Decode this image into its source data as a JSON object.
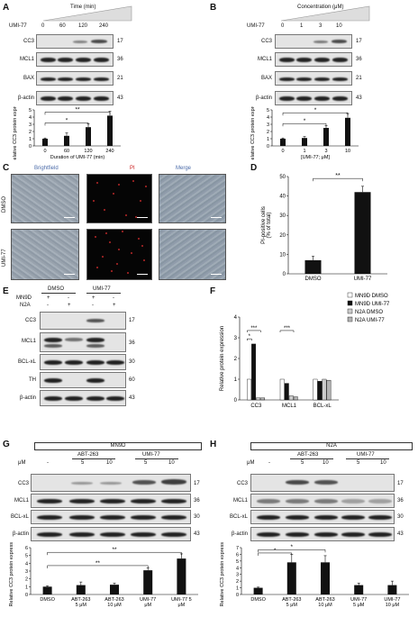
{
  "panels": {
    "A": "A",
    "B": "B",
    "C": "C",
    "D": "D",
    "E": "E",
    "F": "F",
    "G": "G",
    "H": "H"
  },
  "A": {
    "header": "Time (min)",
    "treatment": "UMI-77",
    "lanes": [
      "0",
      "60",
      "120",
      "240"
    ],
    "rows": [
      {
        "name": "CC3",
        "mw": "17"
      },
      {
        "name": "MCL1",
        "mw": "36"
      },
      {
        "name": "BAX",
        "mw": "21"
      },
      {
        "name": "β-actin",
        "mw": "43"
      }
    ],
    "chart": {
      "ylabel": "Relative CC3 protein expression",
      "xlabel": "Duration of UMI-77 (min)",
      "yticks": [
        "0",
        "1",
        "2",
        "3",
        "4",
        "5"
      ],
      "sig": [
        "*",
        "**"
      ]
    }
  },
  "B": {
    "header": "Concentration (μM)",
    "treatment": "UMI-77",
    "lanes": [
      "0",
      "1",
      "3",
      "10"
    ],
    "rows": [
      {
        "name": "CC3",
        "mw": "17"
      },
      {
        "name": "MCL1",
        "mw": "36"
      },
      {
        "name": "BAX",
        "mw": "21"
      },
      {
        "name": "β-actin",
        "mw": "43"
      }
    ],
    "chart": {
      "ylabel": "Relative CC3 protein expression",
      "xlabel": "[UMI-77; μM]",
      "yticks": [
        "0",
        "1",
        "2",
        "3",
        "4",
        "5"
      ],
      "sig": [
        "*",
        "*"
      ]
    }
  },
  "C": {
    "cols": [
      "Brightfield",
      "PI",
      "Merge"
    ],
    "rows": [
      "DMSO",
      "UMI-77"
    ]
  },
  "D": {
    "ylabel": "PI-positive cells",
    "ylabel2": "(% of total)",
    "yticks": [
      "0",
      "10",
      "20",
      "30",
      "40",
      "50"
    ],
    "sig": "**"
  },
  "E": {
    "groups": [
      "DMSO",
      "UMI-77"
    ],
    "lineA": "MN9D",
    "lineB": "N2A",
    "plus": "+",
    "minus": "-",
    "rows": [
      {
        "name": "CC3",
        "mw": "17"
      },
      {
        "name": "MCL1",
        "mw": "36"
      },
      {
        "name": "BCL-xL",
        "mw": "30"
      },
      {
        "name": "TH",
        "mw": "60"
      },
      {
        "name": "β-actin",
        "mw": "43"
      }
    ]
  },
  "F": {
    "ylabel": "Relative protein expression",
    "yticks": [
      "0",
      "1",
      "2",
      "3",
      "4"
    ],
    "legend": [
      "MN9D DMSO",
      "MN9D UMI-77",
      "N2A DMSO",
      "N2A UMI-77"
    ],
    "sig": [
      "*",
      "***",
      "***"
    ]
  },
  "G": {
    "cell": "MN9D",
    "unit": "μM",
    "drugs": [
      "ABT-263",
      "UMI-77"
    ],
    "doses": [
      "-",
      "5",
      "10",
      "5",
      "10"
    ],
    "rows": [
      {
        "name": "CC3",
        "mw": "17"
      },
      {
        "name": "MCL1",
        "mw": "36"
      },
      {
        "name": "BCL-xL",
        "mw": "30"
      },
      {
        "name": "β-actin",
        "mw": "43"
      }
    ],
    "ylabel": "Relative CC3 protein expression",
    "yticks": [
      "0",
      "1",
      "2",
      "3",
      "4",
      "5",
      "6"
    ],
    "sig": [
      "**",
      "**"
    ]
  },
  "H": {
    "cell": "N2A",
    "unit": "μM",
    "drugs": [
      "ABT-263",
      "UMI-77"
    ],
    "doses": [
      "-",
      "5",
      "10",
      "5",
      "10"
    ],
    "rows": [
      {
        "name": "CC3",
        "mw": "17"
      },
      {
        "name": "MCL1",
        "mw": "36"
      },
      {
        "name": "BCL-xL",
        "mw": "30"
      },
      {
        "name": "β-actin",
        "mw": "43"
      }
    ],
    "ylabel": "Relative CC3 protein expression",
    "yticks": [
      "0",
      "1",
      "2",
      "3",
      "4",
      "5",
      "6",
      "7"
    ],
    "sig": [
      "*",
      "*"
    ]
  },
  "chart_data": [
    {
      "id": "A",
      "type": "bar",
      "categories": [
        "0",
        "60",
        "120",
        "240"
      ],
      "values": [
        1.0,
        1.4,
        2.6,
        4.2
      ],
      "errors": [
        0.1,
        0.4,
        0.5,
        0.6
      ],
      "ylim": [
        0,
        5
      ],
      "xlabel": "Duration of UMI-77 (min)",
      "ylabel": "Relative CC3 protein expression"
    },
    {
      "id": "B",
      "type": "bar",
      "categories": [
        "0",
        "1",
        "3",
        "10"
      ],
      "values": [
        1.0,
        1.1,
        2.5,
        3.9
      ],
      "errors": [
        0.1,
        0.2,
        0.3,
        0.6
      ],
      "ylim": [
        0,
        5
      ],
      "xlabel": "[UMI-77; μM]",
      "ylabel": "Relative CC3 protein expression"
    },
    {
      "id": "D",
      "type": "bar",
      "categories": [
        "DMSO",
        "UMI-77"
      ],
      "values": [
        7,
        42
      ],
      "errors": [
        2,
        3
      ],
      "ylim": [
        0,
        50
      ],
      "ylabel": "PI-positive cells (% of total)"
    },
    {
      "id": "F",
      "type": "bar",
      "categories": [
        "CC3",
        "MCL1",
        "BCL-xL"
      ],
      "series": [
        {
          "name": "MN9D DMSO",
          "values": [
            1.0,
            1.0,
            1.0
          ]
        },
        {
          "name": "MN9D UMI-77",
          "values": [
            2.7,
            0.8,
            0.9
          ]
        },
        {
          "name": "N2A DMSO",
          "values": [
            0.1,
            0.2,
            1.0
          ]
        },
        {
          "name": "N2A UMI-77",
          "values": [
            0.1,
            0.15,
            0.95
          ]
        }
      ],
      "ylim": [
        0,
        4
      ],
      "ylabel": "Relative protein expression"
    },
    {
      "id": "G",
      "type": "bar",
      "categories": [
        "DMSO",
        "ABT-263 5 μM",
        "ABT-263 10 μM",
        "UMI-77 5 μM",
        "UMI-77 10 μM"
      ],
      "values": [
        1.0,
        1.2,
        1.25,
        3.1,
        4.6
      ],
      "errors": [
        0.1,
        0.4,
        0.2,
        0.3,
        0.6
      ],
      "ylim": [
        0,
        6
      ],
      "ylabel": "Relative CC3 protein expression"
    },
    {
      "id": "H",
      "type": "bar",
      "categories": [
        "DMSO",
        "ABT-263 5 μM",
        "ABT-263 10 μM",
        "UMI-77 5 μM",
        "UMI-77 10 μM"
      ],
      "values": [
        1.0,
        4.8,
        4.8,
        1.4,
        1.4
      ],
      "errors": [
        0.1,
        1.2,
        1.0,
        0.3,
        0.6
      ],
      "ylim": [
        0,
        7
      ],
      "ylabel": "Relative CC3 protein expression"
    }
  ]
}
